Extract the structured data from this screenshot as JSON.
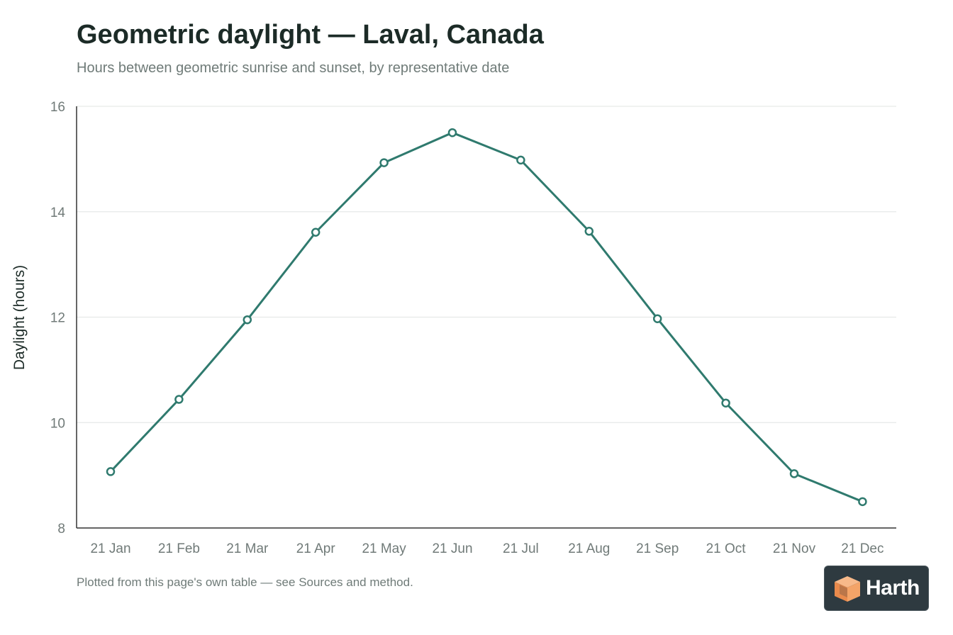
{
  "header": {
    "title": "Geometric daylight — Laval, Canada",
    "subtitle": "Hours between geometric sunrise and sunset, by representative date"
  },
  "footer": {
    "note": "Plotted from this page's own table — see Sources and method."
  },
  "logo": {
    "text": "Harth"
  },
  "colors": {
    "line": "#2f7a6e",
    "grid": "#e6e9e8",
    "axis": "#333333",
    "tick_text": "#707a78"
  },
  "chart_data": {
    "type": "line",
    "title": "Geometric daylight — Laval, Canada",
    "subtitle": "Hours between geometric sunrise and sunset, by representative date",
    "xlabel": "",
    "ylabel": "Daylight (hours)",
    "categories": [
      "21 Jan",
      "21 Feb",
      "21 Mar",
      "21 Apr",
      "21 May",
      "21 Jun",
      "21 Jul",
      "21 Aug",
      "21 Sep",
      "21 Oct",
      "21 Nov",
      "21 Dec"
    ],
    "values": [
      9.07,
      10.44,
      11.95,
      13.61,
      14.93,
      15.5,
      14.98,
      13.63,
      11.97,
      10.37,
      9.03,
      8.5
    ],
    "ylim": [
      8,
      16
    ],
    "yticks": [
      8,
      10,
      12,
      14,
      16
    ],
    "grid": true,
    "markers": "hollow-circle"
  }
}
